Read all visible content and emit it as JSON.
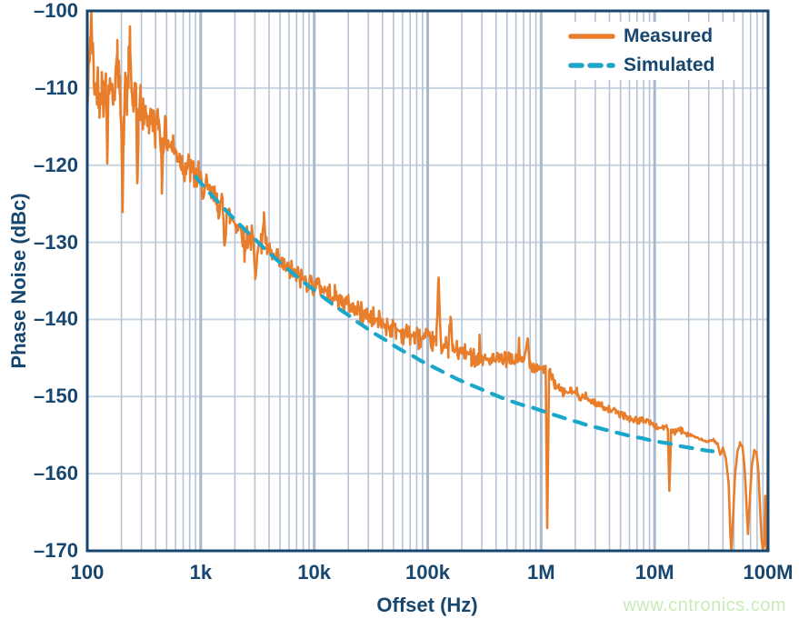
{
  "watermark": {
    "text": "www.cntronics.com"
  },
  "chart_data": {
    "type": "line",
    "title": "",
    "xlabel": "Offset (Hz)",
    "ylabel": "Phase Noise (dBc)",
    "x_scale": "log",
    "xlim": [
      100,
      100000000
    ],
    "ylim": [
      -170,
      -100
    ],
    "grid": {
      "show": true,
      "minor_v_color": "#B7C3D5",
      "major_v_color": "#A9B9CD",
      "h_color": "#C9D4E1",
      "border_color": "#17466F"
    },
    "x_ticks": [
      {
        "value": 100,
        "label": "100"
      },
      {
        "value": 1000,
        "label": "1k"
      },
      {
        "value": 10000,
        "label": "10k"
      },
      {
        "value": 100000,
        "label": "100k"
      },
      {
        "value": 1000000,
        "label": "1M"
      },
      {
        "value": 10000000,
        "label": "10M"
      },
      {
        "value": 100000000,
        "label": "100M"
      }
    ],
    "y_ticks": [
      {
        "value": -100,
        "label": "–100"
      },
      {
        "value": -110,
        "label": "–110"
      },
      {
        "value": -120,
        "label": "–120"
      },
      {
        "value": -130,
        "label": "–130"
      },
      {
        "value": -140,
        "label": "–140"
      },
      {
        "value": -150,
        "label": "–150"
      },
      {
        "value": -160,
        "label": "–160"
      },
      {
        "value": -170,
        "label": "–170"
      }
    ],
    "legend": {
      "position": "top-right",
      "entries": [
        {
          "label": "Measured",
          "series": 0
        },
        {
          "label": "Simulated",
          "series": 1
        }
      ]
    },
    "series": [
      {
        "name": "Measured",
        "color": "#E87E2B",
        "style": "solid",
        "width": 2.6,
        "noise": {
          "seed": 42,
          "amp_by_fmax": [
            [
              300,
              1.7
            ],
            [
              1000,
              1.4
            ],
            [
              3000,
              1.1
            ],
            [
              10000,
              0.9
            ],
            [
              100000,
              0.8
            ],
            [
              300000,
              0.7
            ],
            [
              1000000,
              0.55
            ],
            [
              2500000,
              0.4
            ],
            [
              20000000,
              0.25
            ],
            [
              100000001,
              0.1
            ]
          ]
        },
        "points": [
          [
            100,
            -113.5
          ],
          [
            103,
            -108
          ],
          [
            106,
            -103.5
          ],
          [
            108,
            -101.5
          ],
          [
            111,
            -104.5
          ],
          [
            114,
            -108.5
          ],
          [
            118,
            -110.5
          ],
          [
            123,
            -108.5
          ],
          [
            128,
            -111
          ],
          [
            134,
            -109
          ],
          [
            140,
            -111.2
          ],
          [
            146,
            -109.5
          ],
          [
            150,
            -117
          ],
          [
            154,
            -110
          ],
          [
            160,
            -109
          ],
          [
            167,
            -111.5
          ],
          [
            174,
            -109.5
          ],
          [
            184,
            -106.2
          ],
          [
            194,
            -111
          ],
          [
            200,
            -113
          ],
          [
            205,
            -126
          ],
          [
            210,
            -115
          ],
          [
            216,
            -110.5
          ],
          [
            224,
            -112
          ],
          [
            231,
            -108
          ],
          [
            238,
            -104.3
          ],
          [
            246,
            -110
          ],
          [
            254,
            -112.5
          ],
          [
            262,
            -111
          ],
          [
            270,
            -113
          ],
          [
            276,
            -122.5
          ],
          [
            283,
            -113.5
          ],
          [
            295,
            -111.8
          ],
          [
            310,
            -113.8
          ],
          [
            330,
            -112.8
          ],
          [
            350,
            -114.8
          ],
          [
            375,
            -113.8
          ],
          [
            400,
            -115.3
          ],
          [
            425,
            -114.3
          ],
          [
            445,
            -116
          ],
          [
            455,
            -123
          ],
          [
            468,
            -116
          ],
          [
            490,
            -116.3
          ],
          [
            520,
            -117
          ],
          [
            555,
            -117.6
          ],
          [
            595,
            -118.2
          ],
          [
            640,
            -118.9
          ],
          [
            690,
            -119.5
          ],
          [
            745,
            -120.1
          ],
          [
            805,
            -120.7
          ],
          [
            870,
            -121.3
          ],
          [
            940,
            -121.9
          ],
          [
            1000,
            -122.4
          ],
          [
            1100,
            -123.1
          ],
          [
            1250,
            -124
          ],
          [
            1400,
            -124.8
          ],
          [
            1560,
            -125.6
          ],
          [
            1620,
            -129.8
          ],
          [
            1690,
            -126
          ],
          [
            1800,
            -126.6
          ],
          [
            2050,
            -127.6
          ],
          [
            2350,
            -128.5
          ],
          [
            2450,
            -131.5
          ],
          [
            2550,
            -128.9
          ],
          [
            2700,
            -129.4
          ],
          [
            2900,
            -129.8
          ],
          [
            3020,
            -134.8
          ],
          [
            3150,
            -130.2
          ],
          [
            3400,
            -130.5
          ],
          [
            3600,
            -126.8
          ],
          [
            3800,
            -130.9
          ],
          [
            4100,
            -131.6
          ],
          [
            4600,
            -132.3
          ],
          [
            5200,
            -133
          ],
          [
            5900,
            -133.6
          ],
          [
            6700,
            -134.1
          ],
          [
            7600,
            -134.6
          ],
          [
            8700,
            -135
          ],
          [
            10000,
            -135.4
          ],
          [
            11500,
            -135.9
          ],
          [
            13200,
            -136.4
          ],
          [
            15200,
            -137
          ],
          [
            17500,
            -137.6
          ],
          [
            20000,
            -138.1
          ],
          [
            23000,
            -138.6
          ],
          [
            26500,
            -139.1
          ],
          [
            30500,
            -139.6
          ],
          [
            35000,
            -140.1
          ],
          [
            40000,
            -140.5
          ],
          [
            46000,
            -140.9
          ],
          [
            53000,
            -141.3
          ],
          [
            61000,
            -141.7
          ],
          [
            70000,
            -142
          ],
          [
            81000,
            -142.3
          ],
          [
            93000,
            -142.6
          ],
          [
            100000,
            -142.7
          ],
          [
            110000,
            -142.9
          ],
          [
            119000,
            -143.1
          ],
          [
            125000,
            -134.8
          ],
          [
            131000,
            -143.3
          ],
          [
            145000,
            -143.5
          ],
          [
            152000,
            -143.7
          ],
          [
            159000,
            -139.8
          ],
          [
            166000,
            -143.9
          ],
          [
            183000,
            -144.1
          ],
          [
            210000,
            -144.4
          ],
          [
            242000,
            -144.7
          ],
          [
            281000,
            -144.9
          ],
          [
            286000,
            -142.4
          ],
          [
            292000,
            -145
          ],
          [
            320000,
            -145.1
          ],
          [
            368000,
            -145.3
          ],
          [
            423000,
            -145.3
          ],
          [
            487000,
            -145.2
          ],
          [
            560000,
            -145.4
          ],
          [
            628000,
            -145.3
          ],
          [
            638000,
            -142.3
          ],
          [
            650000,
            -145.4
          ],
          [
            700000,
            -145.6
          ],
          [
            762000,
            -142.6
          ],
          [
            800000,
            -145.7
          ],
          [
            852000,
            -145.9
          ],
          [
            920000,
            -146.1
          ],
          [
            1000000,
            -146.3
          ],
          [
            1050000,
            -146.4
          ],
          [
            1095000,
            -146.5
          ],
          [
            1130000,
            -167
          ],
          [
            1175000,
            -146.8
          ],
          [
            1230000,
            -147.3
          ],
          [
            1320000,
            -148.3
          ],
          [
            1450000,
            -149.2
          ],
          [
            1600000,
            -149.5
          ],
          [
            1800000,
            -149.3
          ],
          [
            2000000,
            -149.5
          ],
          [
            2250000,
            -149.9
          ],
          [
            2600000,
            -150.4
          ],
          [
            3000000,
            -150.8
          ],
          [
            3450000,
            -151.2
          ],
          [
            3950000,
            -151.6
          ],
          [
            4550000,
            -152
          ],
          [
            5250000,
            -152.4
          ],
          [
            6000000,
            -152.8
          ],
          [
            6900000,
            -153.1
          ],
          [
            7950000,
            -153.1
          ],
          [
            8600000,
            -153
          ],
          [
            9200000,
            -153.4
          ],
          [
            10000000,
            -153.8
          ],
          [
            10900000,
            -154.1
          ],
          [
            11800000,
            -153.9
          ],
          [
            12700000,
            -154
          ],
          [
            13100000,
            -154.4
          ],
          [
            13500000,
            -162.3
          ],
          [
            13950000,
            -154.7
          ],
          [
            15100000,
            -154.6
          ],
          [
            16300000,
            -154.3
          ],
          [
            17600000,
            -154.5
          ],
          [
            19000000,
            -154.7
          ],
          [
            20500000,
            -154.9
          ],
          [
            22500000,
            -155.2
          ],
          [
            24500000,
            -155.5
          ],
          [
            27000000,
            -155.7
          ],
          [
            30000000,
            -155.9
          ],
          [
            33000000,
            -155.6
          ],
          [
            36000000,
            -156.1
          ],
          [
            38000000,
            -157.6
          ],
          [
            40000000,
            -156.7
          ],
          [
            42500000,
            -158
          ],
          [
            45000000,
            -161.5
          ],
          [
            46500000,
            -168
          ],
          [
            47500000,
            -170
          ],
          [
            49000000,
            -166
          ],
          [
            51000000,
            -160.5
          ],
          [
            53500000,
            -157.3
          ],
          [
            56500000,
            -156
          ],
          [
            59500000,
            -156.6
          ],
          [
            62000000,
            -159
          ],
          [
            64500000,
            -164
          ],
          [
            66500000,
            -167.7
          ],
          [
            69000000,
            -163.5
          ],
          [
            72000000,
            -158.8
          ],
          [
            75500000,
            -157.1
          ],
          [
            79000000,
            -157.2
          ],
          [
            82000000,
            -159.5
          ],
          [
            85000000,
            -164.5
          ],
          [
            87500000,
            -168.5
          ],
          [
            90000000,
            -170
          ],
          [
            92500000,
            -169
          ],
          [
            94500000,
            -163
          ],
          [
            95800000,
            -166.5
          ],
          [
            97000000,
            -170
          ],
          [
            98500000,
            -169
          ],
          [
            99300000,
            -158
          ],
          [
            100000000,
            -140.5
          ]
        ]
      },
      {
        "name": "Simulated",
        "color": "#1BA7C9",
        "style": "dashed",
        "width": 4.2,
        "dash": [
          13,
          11
        ],
        "points": [
          [
            900,
            -121.5
          ],
          [
            1000,
            -122.3
          ],
          [
            1200,
            -123.6
          ],
          [
            1450,
            -124.9
          ],
          [
            1750,
            -126.2
          ],
          [
            2100,
            -127.4
          ],
          [
            2550,
            -128.6
          ],
          [
            3050,
            -129.7
          ],
          [
            3700,
            -130.9
          ],
          [
            4450,
            -132
          ],
          [
            5350,
            -133
          ],
          [
            6450,
            -134
          ],
          [
            7800,
            -135
          ],
          [
            9400,
            -135.9
          ],
          [
            11300,
            -136.8
          ],
          [
            13600,
            -137.7
          ],
          [
            16400,
            -138.6
          ],
          [
            19800,
            -139.4
          ],
          [
            23900,
            -140.3
          ],
          [
            28800,
            -141.1
          ],
          [
            34700,
            -141.9
          ],
          [
            41800,
            -142.6
          ],
          [
            50400,
            -143.4
          ],
          [
            60700,
            -144.1
          ],
          [
            73200,
            -144.7
          ],
          [
            88200,
            -145.4
          ],
          [
            106000,
            -146
          ],
          [
            128000,
            -146.6
          ],
          [
            154000,
            -147.2
          ],
          [
            186000,
            -147.8
          ],
          [
            224000,
            -148.3
          ],
          [
            270000,
            -148.8
          ],
          [
            326000,
            -149.3
          ],
          [
            393000,
            -149.8
          ],
          [
            473000,
            -150.3
          ],
          [
            570000,
            -150.7
          ],
          [
            687000,
            -151.1
          ],
          [
            828000,
            -151.4
          ],
          [
            998000,
            -151.8
          ],
          [
            1200000,
            -152.2
          ],
          [
            1450000,
            -152.6
          ],
          [
            1750000,
            -153
          ],
          [
            2100000,
            -153.3
          ],
          [
            2540000,
            -153.7
          ],
          [
            3060000,
            -154
          ],
          [
            3680000,
            -154.3
          ],
          [
            4440000,
            -154.6
          ],
          [
            5350000,
            -154.9
          ],
          [
            6450000,
            -155.2
          ],
          [
            7770000,
            -155.4
          ],
          [
            9370000,
            -155.7
          ],
          [
            11300000,
            -155.9
          ],
          [
            13600000,
            -156.1
          ],
          [
            16400000,
            -156.4
          ],
          [
            19800000,
            -156.6
          ],
          [
            23800000,
            -156.8
          ],
          [
            28700000,
            -157
          ],
          [
            32500000,
            -157.1
          ]
        ]
      }
    ]
  }
}
